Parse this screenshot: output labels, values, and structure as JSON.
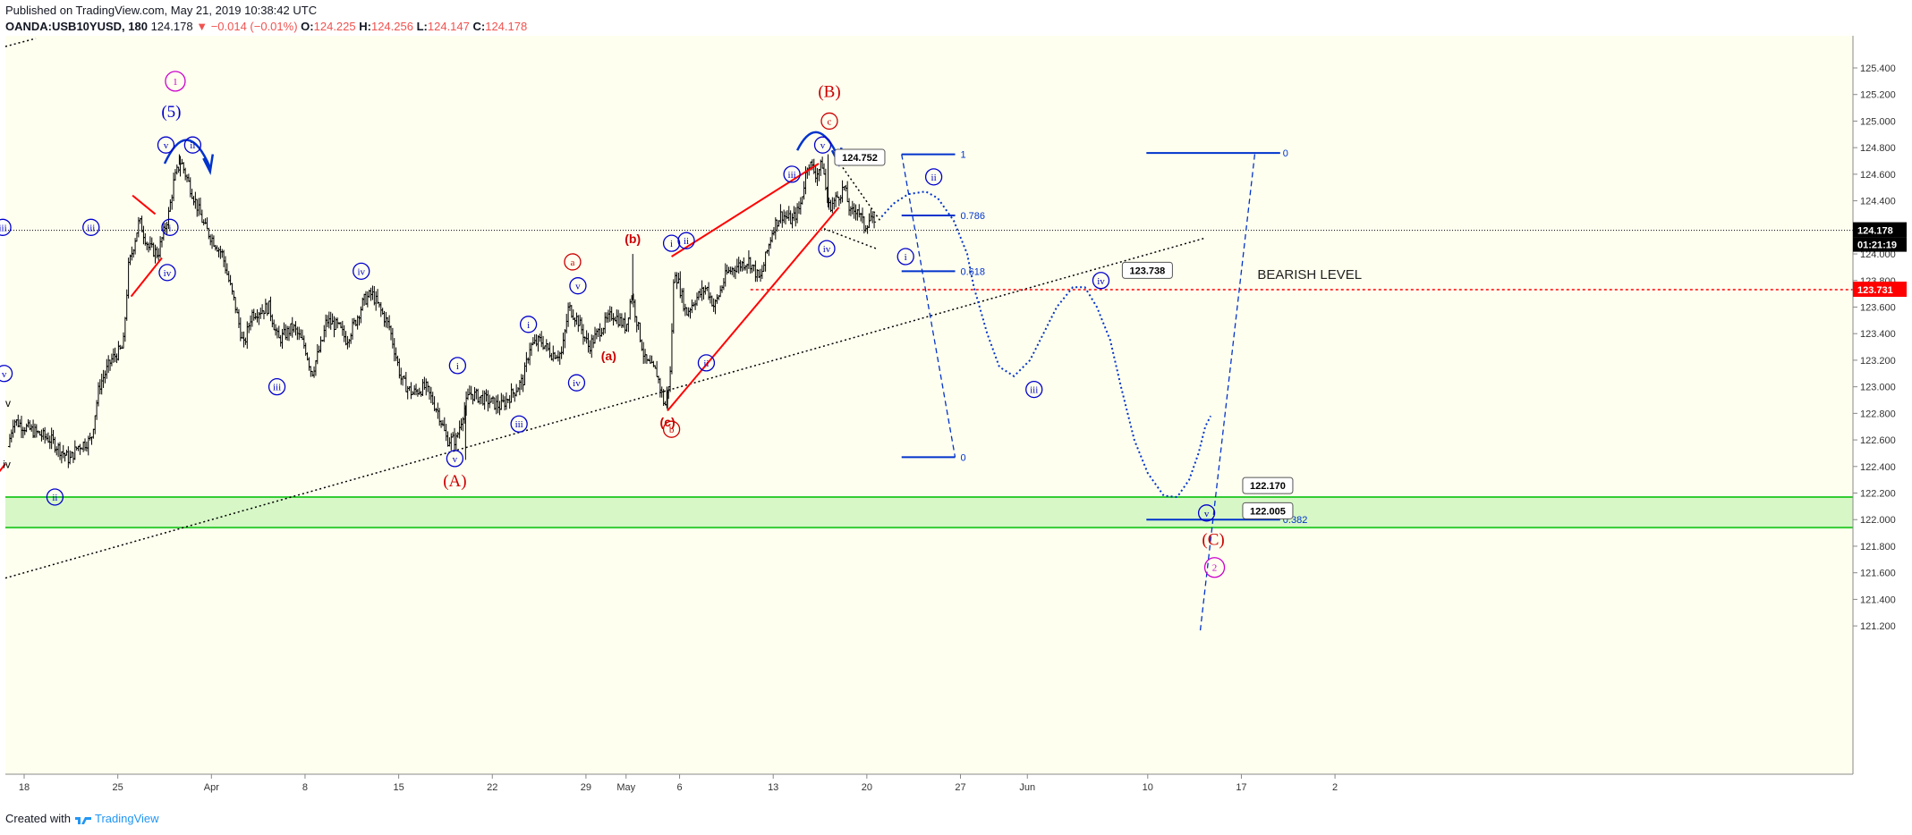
{
  "header": {
    "published": "Published on TradingView.com, May 21, 2019 10:38:42 UTC",
    "symbol": "OANDA:USB10YUSD, 180",
    "last": "124.178",
    "change": "−0.014 (−0.01%)",
    "o_label": "O:",
    "o_value": "124.225",
    "h_label": "H:",
    "h_value": "124.256",
    "l_label": "L:",
    "l_value": "124.147",
    "c_label": "C:",
    "c_value": "124.178"
  },
  "footer": {
    "prefix": "Created with",
    "brand": "TradingView"
  },
  "colors": {
    "background": "#fffff0",
    "candle": "#000000",
    "support_fill": "#d7f7c7",
    "support_line": "#33cc33",
    "bearish_level": "#ff0000",
    "wave_blue": "#0000cc",
    "wave_red": "#cc0000",
    "wave_magenta": "#cc00cc",
    "price_tag": "#000000"
  },
  "chart_data": {
    "type": "candlestick",
    "timeframe": "180",
    "y_axis": {
      "range": [
        121.14,
        125.58
      ],
      "ticks": [
        "125.400",
        "125.200",
        "125.000",
        "124.800",
        "124.600",
        "124.400",
        "124.200",
        "124.000",
        "123.800",
        "123.600",
        "123.400",
        "123.200",
        "123.000",
        "122.800",
        "122.600",
        "122.400",
        "122.200",
        "122.000",
        "121.800",
        "121.600",
        "121.400",
        "121.200"
      ]
    },
    "x_axis": {
      "ticks": [
        {
          "label": "18",
          "day": 0
        },
        {
          "label": "25",
          "day": 7
        },
        {
          "label": "Apr",
          "day": 14
        },
        {
          "label": "8",
          "day": 21
        },
        {
          "label": "15",
          "day": 28
        },
        {
          "label": "22",
          "day": 35
        },
        {
          "label": "29",
          "day": 42
        },
        {
          "label": "May",
          "day": 45
        },
        {
          "label": "6",
          "day": 49
        },
        {
          "label": "13",
          "day": 56
        },
        {
          "label": "20",
          "day": 63
        },
        {
          "label": "27",
          "day": 70
        },
        {
          "label": "Jun",
          "day": 75
        },
        {
          "label": "10",
          "day": 84
        },
        {
          "label": "17",
          "day": 91
        },
        {
          "label": "2",
          "day": 98
        }
      ]
    },
    "price_path": [
      [
        -1.2,
        122.55
      ],
      [
        -0.8,
        122.75
      ],
      [
        0,
        122.7
      ],
      [
        2,
        122.6
      ],
      [
        3.4,
        122.45
      ],
      [
        4,
        122.55
      ],
      [
        5,
        122.6
      ],
      [
        5.6,
        123.0
      ],
      [
        6.5,
        123.2
      ],
      [
        7.4,
        123.3
      ],
      [
        7.8,
        123.9
      ],
      [
        8.6,
        124.25
      ],
      [
        9.3,
        124.05
      ],
      [
        10,
        124.0
      ],
      [
        10.8,
        124.3
      ],
      [
        11.2,
        124.55
      ],
      [
        11.7,
        124.7
      ],
      [
        12.6,
        124.45
      ],
      [
        13.5,
        124.2
      ],
      [
        14.8,
        124.0
      ],
      [
        15.8,
        123.6
      ],
      [
        16.4,
        123.3
      ],
      [
        17,
        123.55
      ],
      [
        18.3,
        123.6
      ],
      [
        19,
        123.35
      ],
      [
        20.1,
        123.45
      ],
      [
        21,
        123.3
      ],
      [
        21.5,
        123.1
      ],
      [
        22.3,
        123.35
      ],
      [
        22.6,
        123.5
      ],
      [
        23.5,
        123.45
      ],
      [
        24.1,
        123.35
      ],
      [
        24.8,
        123.5
      ],
      [
        25.4,
        123.65
      ],
      [
        26,
        123.7
      ],
      [
        27.3,
        123.45
      ],
      [
        28.2,
        123.05
      ],
      [
        29,
        122.95
      ],
      [
        30,
        123.0
      ],
      [
        31,
        122.8
      ],
      [
        31.6,
        122.6
      ],
      [
        32.3,
        122.6
      ],
      [
        32.8,
        122.8
      ],
      [
        33.3,
        122.95
      ],
      [
        34.6,
        122.9
      ],
      [
        35.6,
        122.85
      ],
      [
        36.5,
        122.95
      ],
      [
        37.3,
        123.05
      ],
      [
        37.8,
        123.3
      ],
      [
        38.6,
        123.35
      ],
      [
        39.4,
        123.25
      ],
      [
        40.2,
        123.25
      ],
      [
        40.7,
        123.6
      ],
      [
        41.4,
        123.5
      ],
      [
        42.2,
        123.3
      ],
      [
        43.2,
        123.45
      ],
      [
        44,
        123.55
      ],
      [
        45,
        123.45
      ],
      [
        45.4,
        123.7
      ],
      [
        46.4,
        123.2
      ],
      [
        47.3,
        123.1
      ],
      [
        47.9,
        122.85
      ],
      [
        48.3,
        123.1
      ],
      [
        48.6,
        123.9
      ],
      [
        49,
        123.75
      ],
      [
        49.5,
        123.55
      ],
      [
        50.1,
        123.65
      ],
      [
        51,
        123.75
      ],
      [
        51.6,
        123.6
      ],
      [
        52.5,
        123.85
      ],
      [
        53.1,
        123.9
      ],
      [
        54.2,
        123.95
      ],
      [
        55,
        123.8
      ],
      [
        55.5,
        124.0
      ],
      [
        56,
        124.2
      ],
      [
        56.6,
        124.3
      ],
      [
        57.4,
        124.25
      ],
      [
        58,
        124.35
      ],
      [
        58.6,
        124.7
      ],
      [
        59.2,
        124.6
      ],
      [
        59.7,
        124.68
      ],
      [
        60.1,
        124.35
      ],
      [
        60.6,
        124.4
      ],
      [
        61.3,
        124.5
      ],
      [
        61.8,
        124.3
      ],
      [
        62.3,
        124.35
      ],
      [
        62.8,
        124.2
      ],
      [
        63.3,
        124.28
      ],
      [
        63.6,
        124.18
      ]
    ],
    "support_zone": [
      121.94,
      122.17
    ],
    "bearish_level": {
      "price": 123.731,
      "label": "BEARISH LEVEL"
    },
    "last_price": {
      "price": 124.178,
      "countdown": "01:21:19"
    },
    "price_labels": [
      "124.752",
      "123.738",
      "122.170",
      "122.005"
    ],
    "fib_top": {
      "levels": [
        {
          "ratio": "1",
          "price": 124.75
        },
        {
          "ratio": "0.786",
          "price": 124.29
        },
        {
          "ratio": "0.618",
          "price": 123.87
        },
        {
          "ratio": "0",
          "price": 122.47
        }
      ]
    },
    "fib_right": {
      "levels": [
        {
          "ratio": "0",
          "price": 124.76
        },
        {
          "ratio": "0.382",
          "price": 122.0
        }
      ]
    },
    "wave_labels": {
      "blue": [
        "v",
        "ii",
        "iii",
        "i",
        "iv",
        "iv",
        "iii",
        "v",
        "i",
        "iii",
        "i",
        "iv",
        "v",
        "ii",
        "i",
        "ii",
        "iii",
        "i",
        "iv",
        "v",
        "ii",
        "iii",
        "iv",
        "v",
        "iii",
        "v",
        "(5)",
        "ii",
        "iv"
      ],
      "red": [
        "(B)",
        "c",
        "(b)",
        "a",
        "(a)",
        "(c)",
        "b",
        "(A)",
        "(C)"
      ],
      "magenta": [
        "1",
        "2"
      ]
    }
  }
}
